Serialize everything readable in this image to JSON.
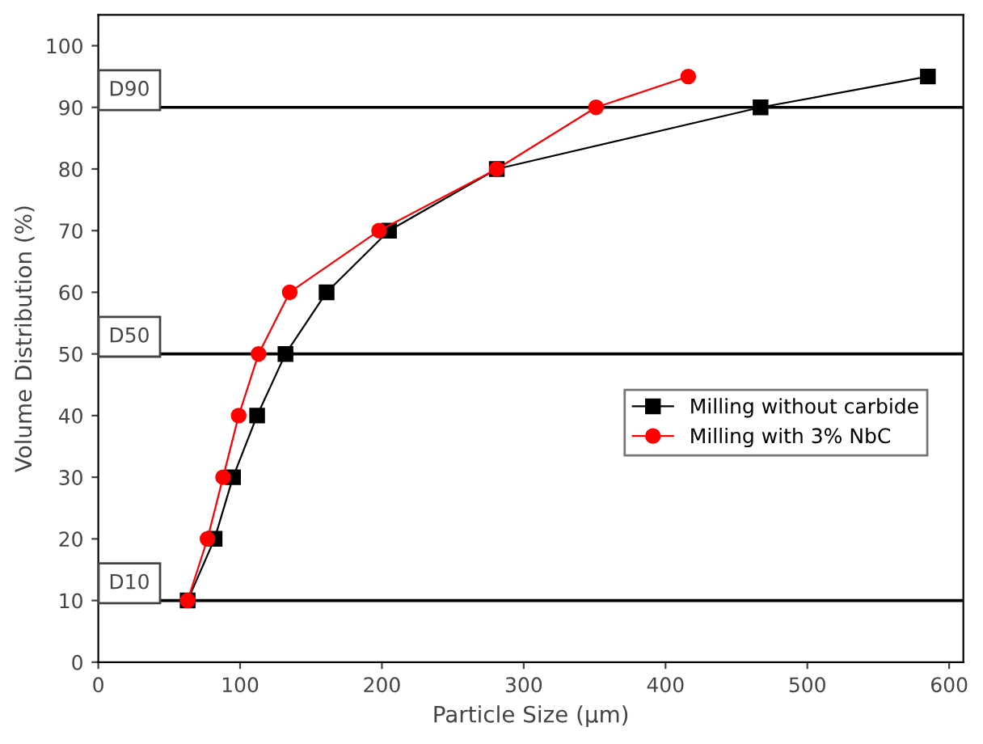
{
  "chart_data": {
    "type": "line",
    "xlabel": "Particle Size (μm)",
    "ylabel": "Volume Distribution (%)",
    "xlim": [
      0,
      610
    ],
    "xticks": [
      0,
      100,
      200,
      300,
      400,
      500,
      600
    ],
    "ylim": [
      0,
      105
    ],
    "yticks": [
      0,
      10,
      20,
      30,
      40,
      50,
      60,
      70,
      80,
      90,
      100
    ],
    "grid": false,
    "legend": "right",
    "line_style": "solid",
    "series": [
      {
        "name": "Milling without carbide",
        "color": "#000000",
        "marker": "square",
        "x": [
          63,
          82,
          95,
          112,
          132,
          161,
          205,
          281,
          467,
          585
        ],
        "values": [
          10,
          20,
          30,
          40,
          50,
          60,
          70,
          80,
          90,
          95
        ]
      },
      {
        "name": "Milling with 3% NbC",
        "color": "#ff0000",
        "marker": "circle",
        "x": [
          63,
          77,
          88,
          99,
          113,
          135,
          198,
          281,
          351,
          416
        ],
        "values": [
          10,
          20,
          30,
          40,
          50,
          60,
          70,
          80,
          90,
          95
        ]
      }
    ],
    "ref_lines": [
      {
        "axis": "y",
        "value": 10,
        "label": "D10",
        "color": "#000000"
      },
      {
        "axis": "y",
        "value": 50,
        "label": "D50",
        "color": "#000000"
      },
      {
        "axis": "y",
        "value": 90,
        "label": "D90",
        "color": "#000000"
      }
    ]
  }
}
